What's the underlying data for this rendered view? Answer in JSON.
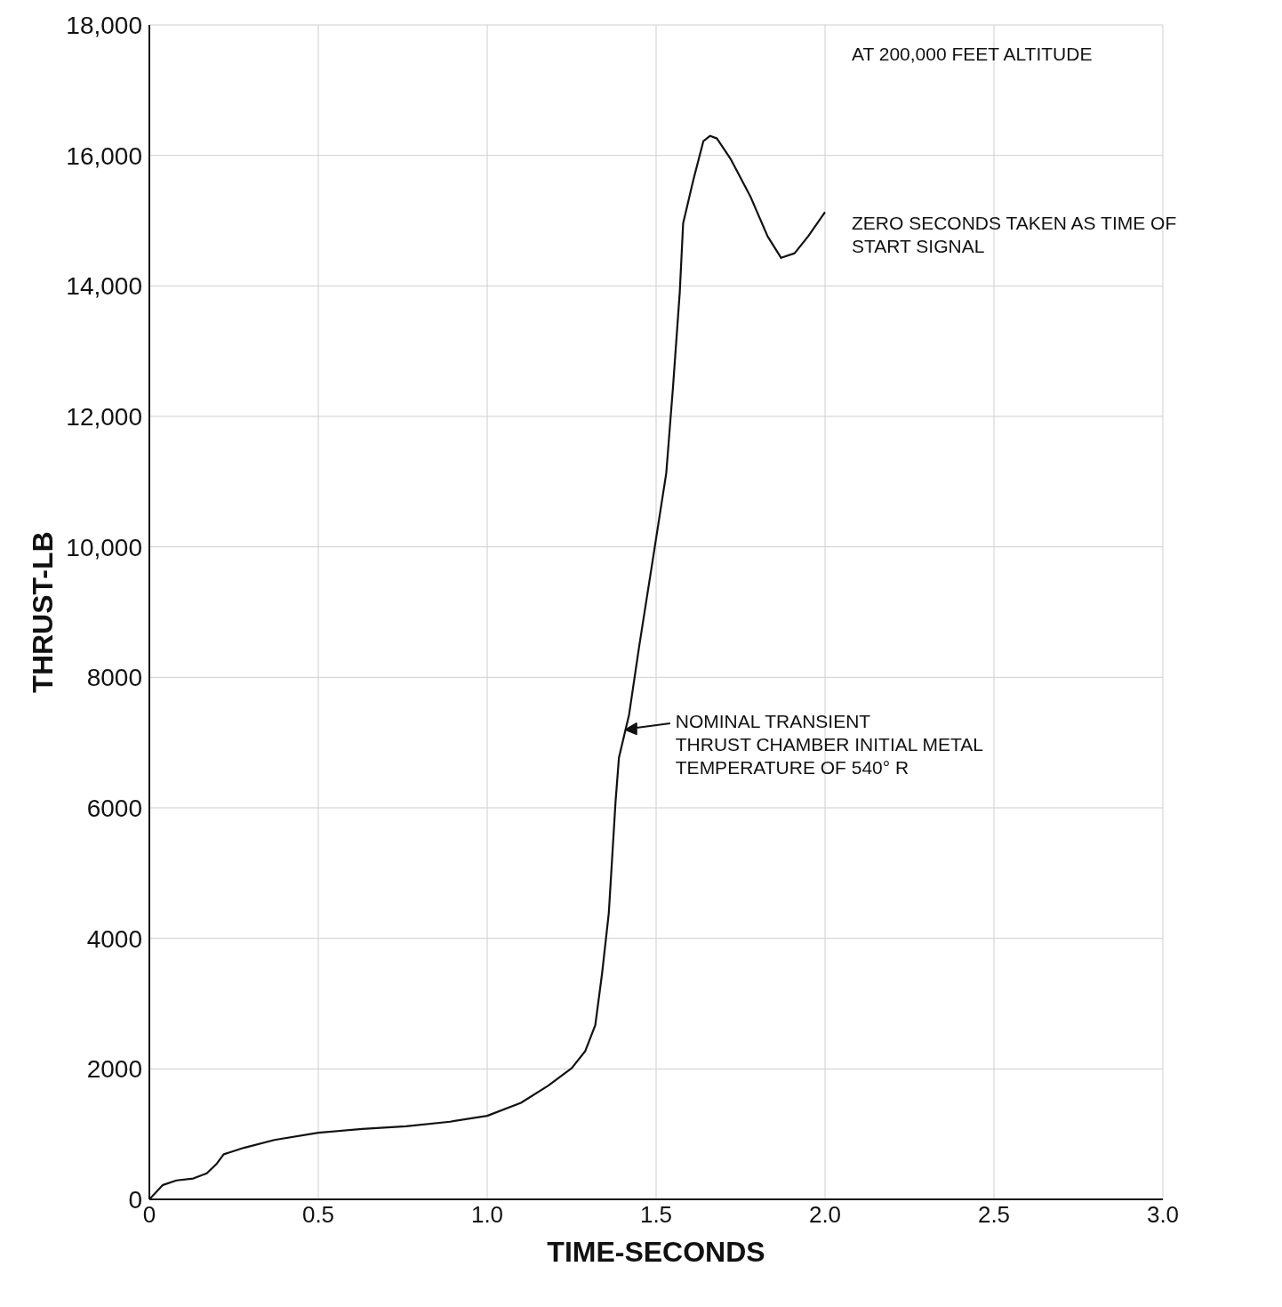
{
  "chart_data": {
    "type": "line",
    "xlabel": "TIME-SECONDS",
    "ylabel": "THRUST-LB",
    "x": [
      0,
      0.04,
      0.08,
      0.13,
      0.17,
      0.2,
      0.22,
      0.28,
      0.37,
      0.5,
      0.63,
      0.76,
      0.89,
      1.0,
      1.1,
      1.18,
      1.25,
      1.29,
      1.32,
      1.34,
      1.36,
      1.38,
      1.39,
      1.42,
      1.45,
      1.49,
      1.53,
      1.55,
      1.57,
      1.58,
      1.61,
      1.64,
      1.66,
      1.68,
      1.72,
      1.78,
      1.83,
      1.87,
      1.91,
      1.95,
      2.0
    ],
    "series": [
      {
        "color": "#111111",
        "values": [
          0,
          220,
          290,
          320,
          400,
          550,
          690,
          790,
          910,
          1020,
          1080,
          1120,
          1190,
          1280,
          1480,
          1740,
          2010,
          2270,
          2670,
          3460,
          4390,
          6100,
          6770,
          7430,
          8480,
          9800,
          11130,
          12450,
          13900,
          14960,
          15620,
          16220,
          16300,
          16260,
          15950,
          15360,
          14760,
          14430,
          14500,
          14760,
          15130
        ]
      }
    ],
    "xlim": [
      0,
      3
    ],
    "xticks": [
      0,
      0.5,
      {
        "value": 1,
        "label": "1.0"
      },
      1.5,
      {
        "value": 2,
        "label": "2.0"
      },
      2.5,
      {
        "value": 3,
        "label": "3.0"
      }
    ],
    "ylim": [
      0,
      18000
    ],
    "yticks": [
      0,
      2000,
      4000,
      6000,
      8000,
      {
        "value": 10000,
        "label": "10,000"
      },
      {
        "value": 12000,
        "label": "12,000"
      },
      {
        "value": 14000,
        "label": "14,000"
      },
      {
        "value": 16000,
        "label": "16,000"
      },
      {
        "value": 18000,
        "label": "18,000"
      }
    ],
    "grid": true,
    "marker": "none",
    "line_style": "solid",
    "annotations": [
      "AT 200,000 FEET ALTITUDE",
      "ZERO SECONDS TAKEN AS TIME OF\nSTART SIGNAL",
      {
        "text": "NOMINAL TRANSIENT\nTHRUST CHAMBER INITIAL METAL\nTEMPERATURE OF 540° R",
        "x": 1.41,
        "y": 7200
      }
    ]
  }
}
